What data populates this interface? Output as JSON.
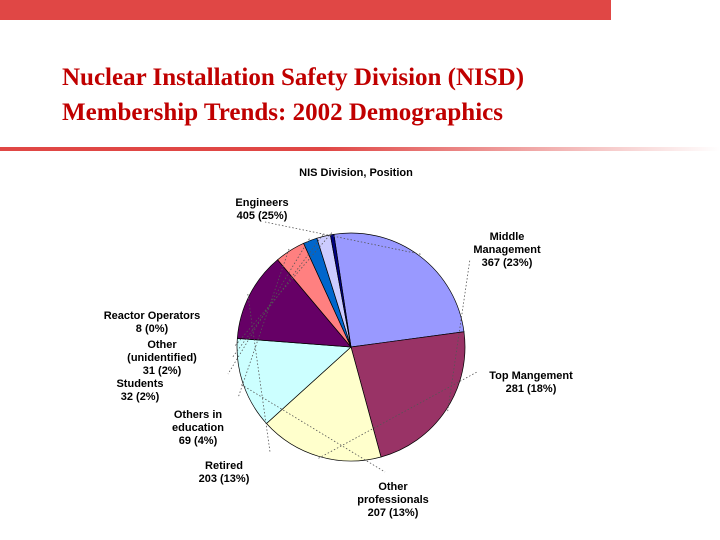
{
  "slide": {
    "title_line1": "Nuclear Installation Safety Division (NISD)",
    "title_line2": "Membership Trends: 2002 Demographics"
  },
  "colors": {
    "accent_red": "#e04745",
    "title_text": "#c00000"
  },
  "chart_data": {
    "type": "pie",
    "title": "NIS Division, Position",
    "slices": [
      {
        "name": "Engineers",
        "value": 405,
        "label_lines": [
          "Engineers",
          "405 (25%)"
        ],
        "color": "#9999ff"
      },
      {
        "name": "Middle Management",
        "value": 367,
        "label_lines": [
          "Middle",
          "Management",
          "367 (23%)"
        ],
        "color": "#993366"
      },
      {
        "name": "Top Mangement",
        "value": 281,
        "label_lines": [
          "Top Mangement",
          "281 (18%)"
        ],
        "color": "#ffffcc"
      },
      {
        "name": "Other professionals",
        "value": 207,
        "label_lines": [
          "Other",
          "professionals",
          "207 (13%)"
        ],
        "color": "#ccffff"
      },
      {
        "name": "Retired",
        "value": 203,
        "label_lines": [
          "Retired",
          "203 (13%)"
        ],
        "color": "#660066"
      },
      {
        "name": "Others in education",
        "value": 69,
        "label_lines": [
          "Others in",
          "education",
          "69 (4%)"
        ],
        "color": "#ff8080"
      },
      {
        "name": "Students",
        "value": 32,
        "label_lines": [
          "Students",
          "32 (2%)"
        ],
        "color": "#0066cc"
      },
      {
        "name": "Other (unidentified)",
        "value": 31,
        "label_lines": [
          "Other",
          "(unidentified)",
          "31 (2%)"
        ],
        "color": "#ccccff"
      },
      {
        "name": "Reactor Operators",
        "value": 8,
        "label_lines": [
          "Reactor Operators",
          "8 (0%)"
        ],
        "color": "#000080"
      }
    ],
    "start": "12 o'clock",
    "direction": "clockwise"
  }
}
